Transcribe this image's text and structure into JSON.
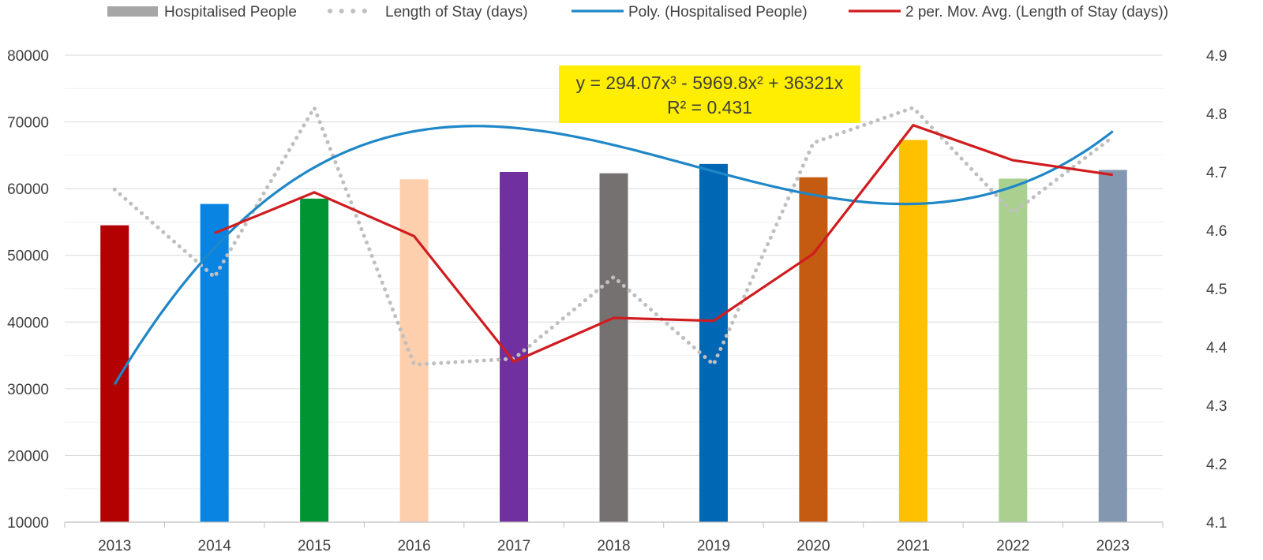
{
  "chart_data": {
    "type": "bar",
    "categories": [
      "2013",
      "2014",
      "2015",
      "2016",
      "2017",
      "2018",
      "2019",
      "2020",
      "2021",
      "2022",
      "2023"
    ],
    "bar_colors": [
      "#b30000",
      "#0984e3",
      "#009432",
      "#fdcfad",
      "#7030a0",
      "#757171",
      "#0067b5",
      "#c55a11",
      "#ffc000",
      "#a9d08e",
      "#8497b0"
    ],
    "series": [
      {
        "name": "Hospitalised People",
        "kind": "bar",
        "axis": "left",
        "values": [
          54500,
          57700,
          58500,
          61400,
          62500,
          62300,
          63700,
          61700,
          67300,
          61500,
          62800
        ]
      },
      {
        "name": "Length of Stay (days)",
        "kind": "dotted-line",
        "axis": "right",
        "color": "#bfbfbf",
        "values": [
          4.67,
          4.52,
          4.81,
          4.37,
          4.38,
          4.52,
          4.37,
          4.75,
          4.81,
          4.63,
          4.76
        ]
      },
      {
        "name": "Poly. (Hospitalised People)",
        "kind": "trendline-poly3",
        "axis": "left",
        "color": "#1f87c8",
        "coefficients": {
          "a3": 294.07,
          "a2": -5969.8,
          "a1": 36321,
          "a0": -0.5
        }
      },
      {
        "name": "2 per. Mov. Avg. (Length of Stay (days))",
        "kind": "moving-average",
        "axis": "right",
        "color": "#d01c1f",
        "period": 2
      }
    ],
    "left_axis": {
      "min": 10000,
      "max": 80000,
      "ticks": [
        "10000",
        "20000",
        "30000",
        "40000",
        "50000",
        "60000",
        "70000",
        "80000"
      ]
    },
    "right_axis": {
      "min": 4.1,
      "max": 4.9,
      "ticks": [
        "4.1",
        "4.2",
        "4.3",
        "4.4",
        "4.5",
        "4.6",
        "4.7",
        "4.8",
        "4.9"
      ]
    },
    "grid": true,
    "legend_position": "top",
    "annotation": {
      "line1": "y = 294.07x³ - 5969.8x² + 36321x",
      "line2": "R² = 0.431",
      "background": "#ffee00"
    },
    "title": "",
    "xlabel": "",
    "ylabel": ""
  }
}
